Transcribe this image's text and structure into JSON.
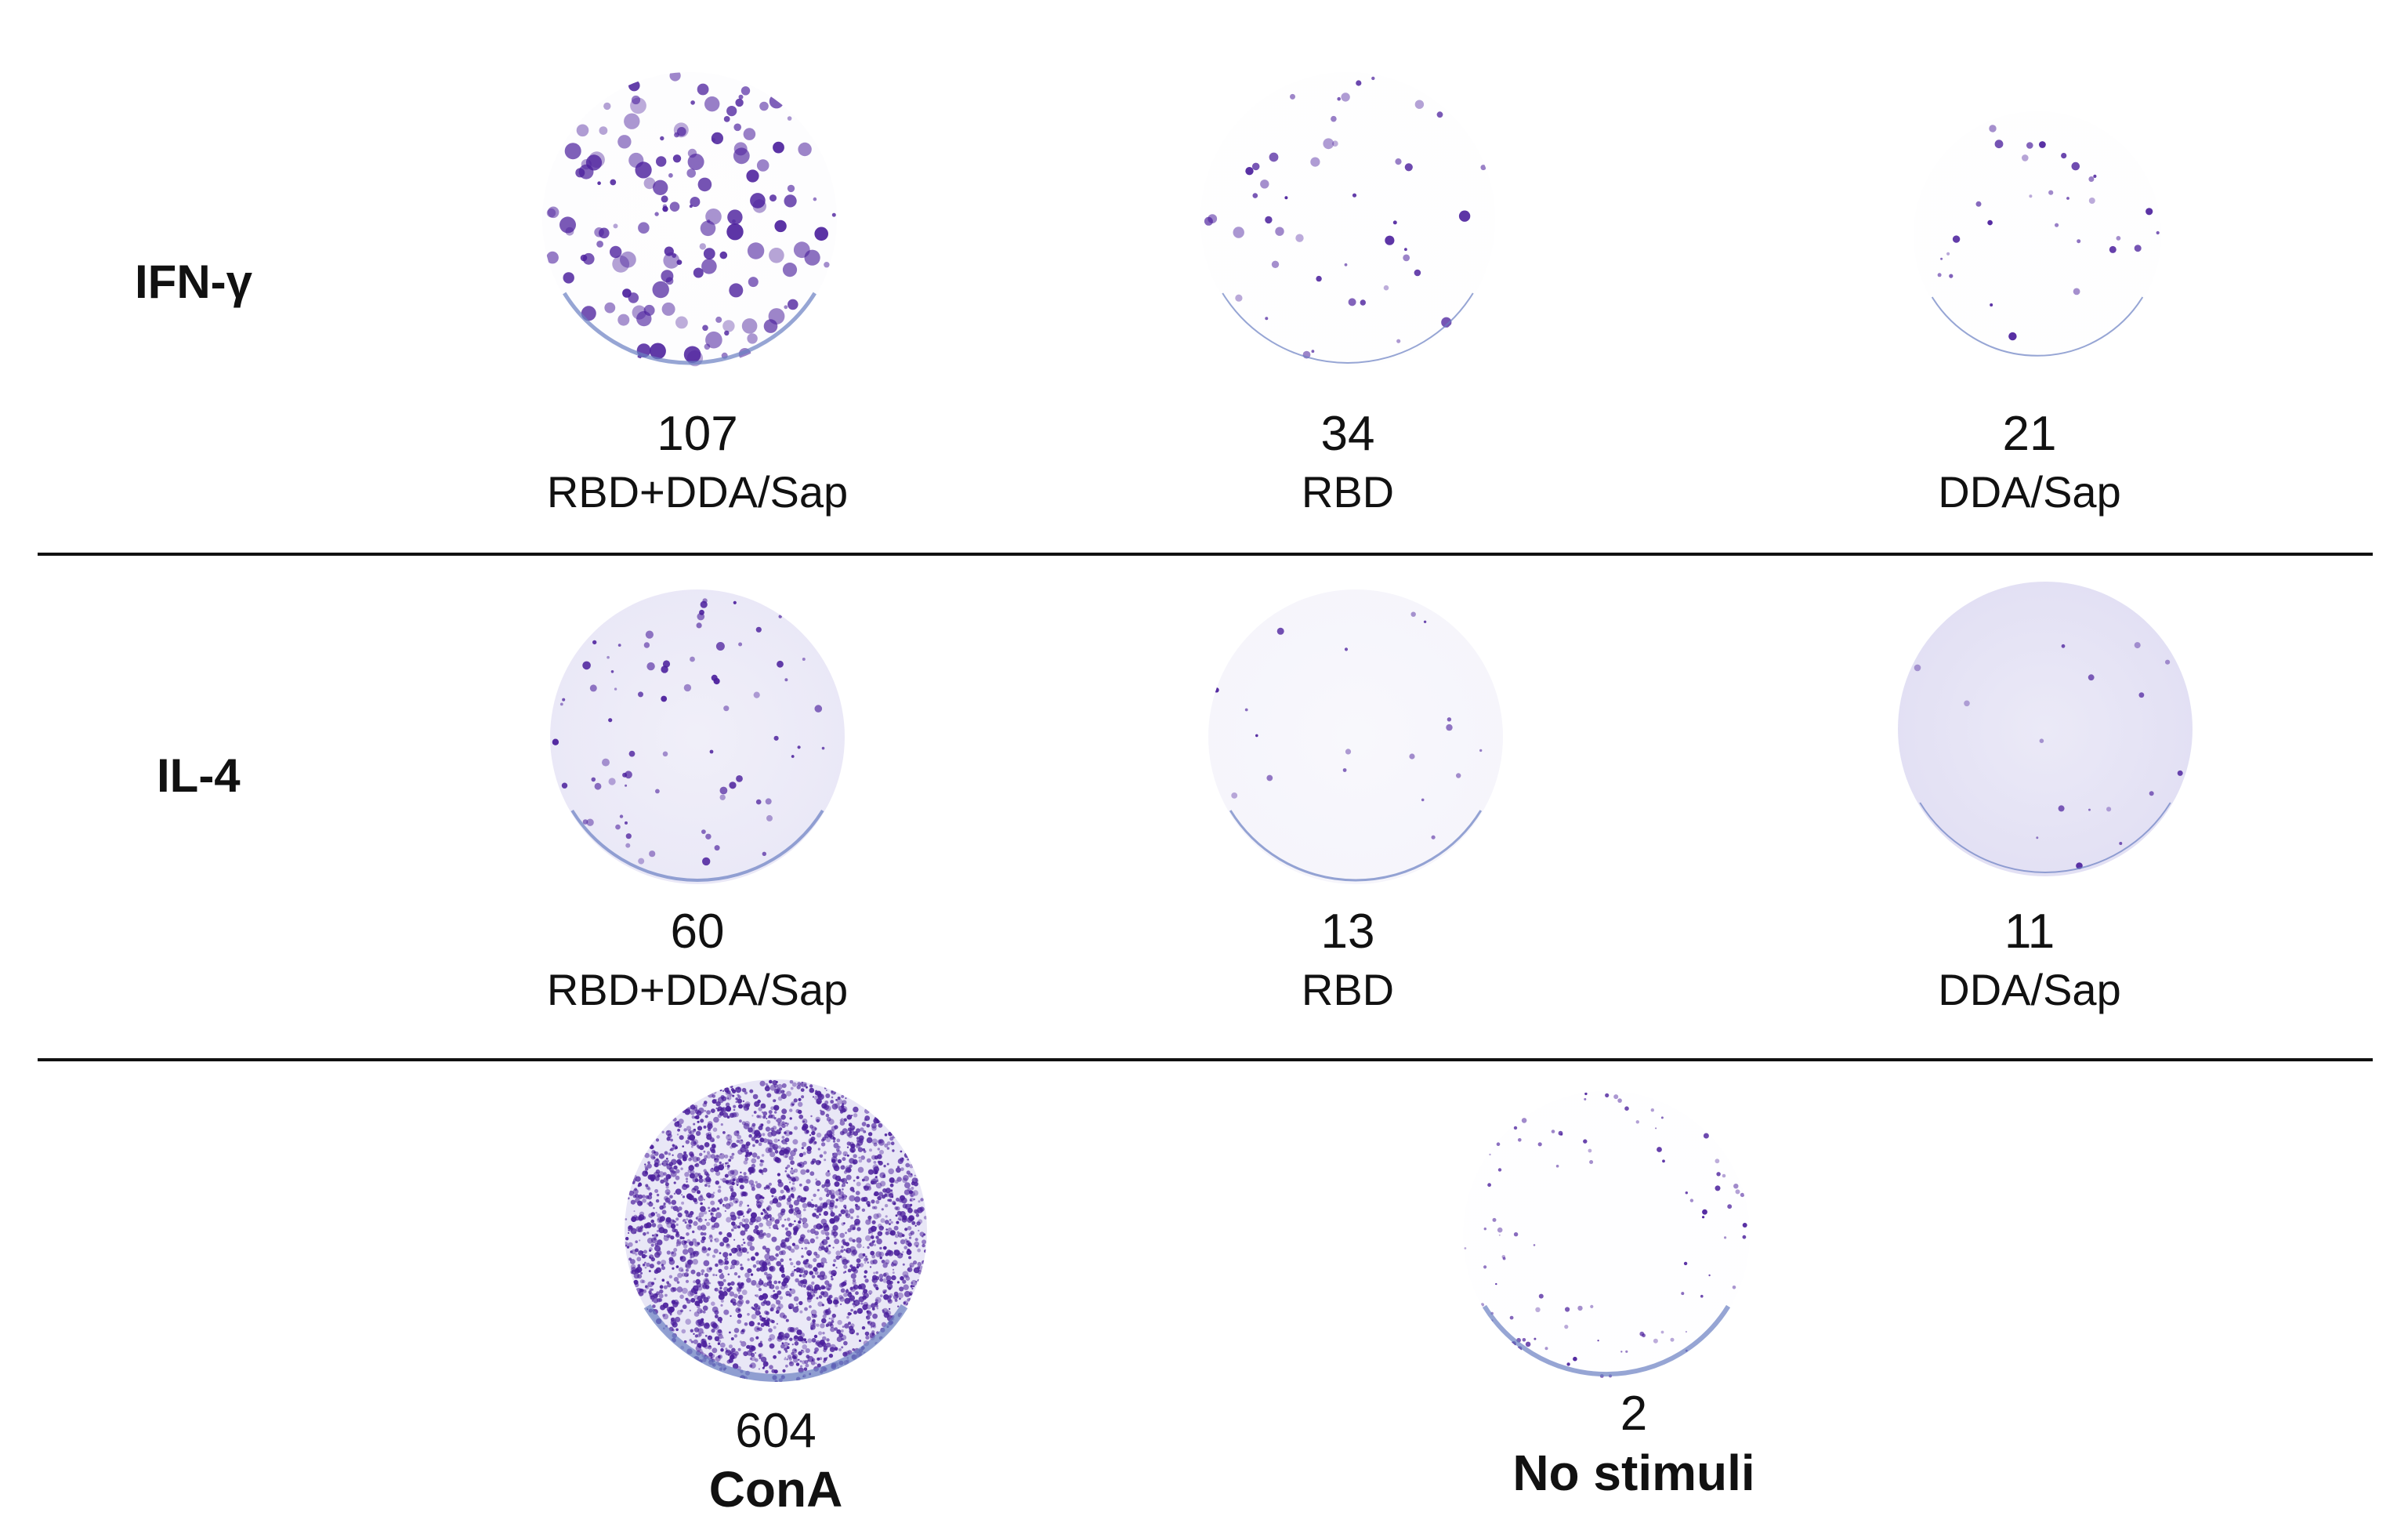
{
  "rows": [
    {
      "label": "IFN-γ",
      "wells": [
        {
          "count": "107",
          "condition": "RBD+DDA/Sap"
        },
        {
          "count": "34",
          "condition": "RBD"
        },
        {
          "count": "21",
          "condition": "DDA/Sap"
        }
      ]
    },
    {
      "label": "IL-4",
      "wells": [
        {
          "count": "60",
          "condition": "RBD+DDA/Sap"
        },
        {
          "count": "13",
          "condition": "RBD"
        },
        {
          "count": "11",
          "condition": "DDA/Sap"
        }
      ]
    }
  ],
  "controls": [
    {
      "count": "604",
      "condition": "ConA"
    },
    {
      "count": "2",
      "condition": "No stimuli"
    }
  ],
  "colors": {
    "spot": "#4b1f9c",
    "background_tint": "#d9d6f0",
    "rim": "#6a7fc2"
  }
}
